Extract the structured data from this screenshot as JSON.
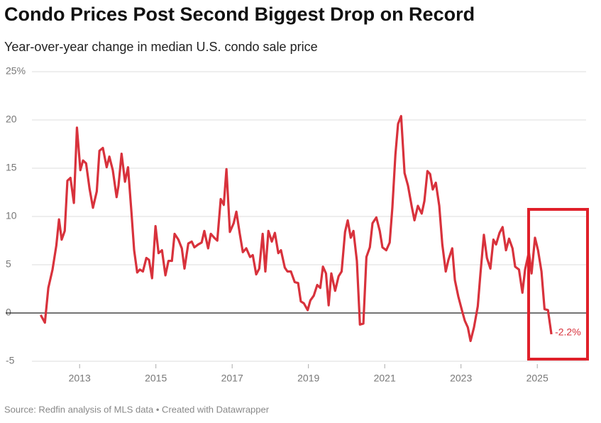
{
  "chart_data": {
    "type": "line",
    "title": "Condo Prices Post Second Biggest Drop on Record",
    "subtitle": "Year-over-year change in median U.S. condo sale price",
    "source": "Source: Redfin analysis of MLS data • Created with Datawrapper",
    "x": [
      2011.98,
      2012.09,
      2012.18,
      2012.29,
      2012.39,
      2012.46,
      2012.53,
      2012.61,
      2012.68,
      2012.76,
      2012.85,
      2012.93,
      2013.02,
      2013.09,
      2013.17,
      2013.26,
      2013.35,
      2013.45,
      2013.52,
      2013.61,
      2013.71,
      2013.78,
      2013.87,
      2013.97,
      2014.02,
      2014.1,
      2014.19,
      2014.27,
      2014.36,
      2014.43,
      2014.51,
      2014.58,
      2014.66,
      2014.75,
      2014.82,
      2014.9,
      2014.99,
      2015.07,
      2015.16,
      2015.25,
      2015.33,
      2015.42,
      2015.49,
      2015.59,
      2015.68,
      2015.75,
      2015.85,
      2015.94,
      2016.01,
      2016.11,
      2016.2,
      2016.27,
      2016.37,
      2016.44,
      2016.53,
      2016.61,
      2016.7,
      2016.78,
      2016.85,
      2016.94,
      2017.04,
      2017.11,
      2017.2,
      2017.28,
      2017.37,
      2017.47,
      2017.54,
      2017.63,
      2017.71,
      2017.8,
      2017.87,
      2017.95,
      2018.04,
      2018.12,
      2018.21,
      2018.28,
      2018.38,
      2018.45,
      2018.54,
      2018.64,
      2018.73,
      2018.8,
      2018.88,
      2018.98,
      2019.05,
      2019.14,
      2019.23,
      2019.31,
      2019.38,
      2019.46,
      2019.53,
      2019.6,
      2019.7,
      2019.79,
      2019.87,
      2019.96,
      2020.03,
      2020.11,
      2020.18,
      2020.27,
      2020.35,
      2020.44,
      2020.52,
      2020.61,
      2020.68,
      2020.78,
      2020.87,
      2020.94,
      2021.04,
      2021.13,
      2021.2,
      2021.28,
      2021.35,
      2021.43,
      2021.52,
      2021.61,
      2021.71,
      2021.78,
      2021.87,
      2021.97,
      2022.04,
      2022.12,
      2022.19,
      2022.26,
      2022.34,
      2022.43,
      2022.51,
      2022.6,
      2022.67,
      2022.77,
      2022.84,
      2022.93,
      2023.03,
      2023.1,
      2023.18,
      2023.25,
      2023.34,
      2023.44,
      2023.51,
      2023.6,
      2023.68,
      2023.77,
      2023.85,
      2023.92,
      2024.01,
      2024.09,
      2024.18,
      2024.26,
      2024.35,
      2024.42,
      2024.52,
      2024.61,
      2024.68,
      2024.78,
      2024.85,
      2024.94,
      2025.02,
      2025.11,
      2025.19,
      2025.28,
      2025.37
    ],
    "series": [
      {
        "name": "Year-over-year change",
        "color": "#d8323c",
        "values": [
          -0.2,
          -1.0,
          2.6,
          4.5,
          7.0,
          9.7,
          7.6,
          8.5,
          13.7,
          14.0,
          11.4,
          19.2,
          14.8,
          15.8,
          15.5,
          12.9,
          10.9,
          12.6,
          16.8,
          17.1,
          15.1,
          16.2,
          14.8,
          12.0,
          13.2,
          16.5,
          13.6,
          15.1,
          10.4,
          6.5,
          4.2,
          4.5,
          4.3,
          5.7,
          5.5,
          3.6,
          9.0,
          6.2,
          6.5,
          3.9,
          5.4,
          5.4,
          8.2,
          7.6,
          6.7,
          4.6,
          7.2,
          7.4,
          6.8,
          7.1,
          7.3,
          8.5,
          6.7,
          8.2,
          7.8,
          7.5,
          11.8,
          11.2,
          14.9,
          8.4,
          9.3,
          10.5,
          8.2,
          6.3,
          6.7,
          5.8,
          6.0,
          4.0,
          4.6,
          8.2,
          4.3,
          8.5,
          7.4,
          8.3,
          6.2,
          6.5,
          4.7,
          4.3,
          4.3,
          3.2,
          3.1,
          1.2,
          1.0,
          0.3,
          1.3,
          1.8,
          2.9,
          2.6,
          4.8,
          4.1,
          0.8,
          4.1,
          2.3,
          3.8,
          4.3,
          8.4,
          9.6,
          7.8,
          8.5,
          5.4,
          -1.2,
          -1.1,
          5.8,
          6.8,
          9.3,
          9.9,
          8.5,
          6.8,
          6.5,
          7.3,
          10.9,
          16.4,
          19.6,
          20.4,
          14.5,
          13.2,
          11.0,
          9.6,
          11.1,
          10.3,
          11.6,
          14.7,
          14.4,
          12.8,
          13.5,
          11.1,
          7.1,
          4.3,
          5.5,
          6.7,
          3.4,
          1.7,
          0.2,
          -0.8,
          -1.5,
          -2.9,
          -1.5,
          0.7,
          4.1,
          8.1,
          5.7,
          4.6,
          7.6,
          7.1,
          8.3,
          8.9,
          6.5,
          7.7,
          6.7,
          4.8,
          4.5,
          2.1,
          4.5,
          6.3,
          4.1,
          7.8,
          6.5,
          4.3,
          0.4,
          0.3,
          -2.2
        ],
        "value_labels": [
          null,
          null,
          null,
          null,
          null,
          null,
          null,
          null,
          null,
          null,
          null,
          null,
          null,
          null,
          null,
          null,
          null,
          null,
          null,
          null,
          null,
          null,
          null,
          null,
          null,
          null,
          null,
          null,
          null,
          null,
          null,
          null,
          null,
          null,
          null,
          null,
          null,
          null,
          null,
          null,
          null,
          null,
          null,
          null,
          null,
          null,
          null,
          null,
          null,
          null,
          null,
          null,
          null,
          null,
          null,
          null,
          null,
          null,
          null,
          null,
          null,
          null,
          null,
          null,
          null,
          null,
          null,
          null,
          null,
          null,
          null,
          null,
          null,
          null,
          null,
          null,
          null,
          null,
          null,
          null,
          null,
          null,
          null,
          null,
          null,
          null,
          null,
          null,
          null,
          null,
          null,
          null,
          null,
          null,
          null,
          null,
          null,
          null,
          null,
          null,
          null,
          null,
          null,
          null,
          null,
          null,
          null,
          null,
          null,
          null,
          null,
          null,
          null,
          null,
          null,
          null,
          null,
          null,
          null,
          null,
          null,
          null,
          null,
          null,
          null,
          null,
          null,
          null,
          null,
          null,
          null,
          null,
          null,
          null,
          null,
          null,
          null,
          null,
          null,
          null,
          null,
          null,
          null,
          null,
          null,
          null,
          null,
          null,
          null,
          null,
          null,
          null,
          null,
          null,
          null,
          null,
          null,
          null,
          null,
          null,
          "-2.2%"
        ]
      }
    ],
    "xlim": [
      2011.75,
      2026.28
    ],
    "xticks": [
      2013,
      2015,
      2017,
      2019,
      2021,
      2023,
      2025
    ],
    "ylim": [
      -5,
      25
    ],
    "yticks": [
      -5,
      0,
      5,
      10,
      15,
      20,
      {
        "value": 25,
        "label": "25%"
      }
    ],
    "grid": true
  }
}
